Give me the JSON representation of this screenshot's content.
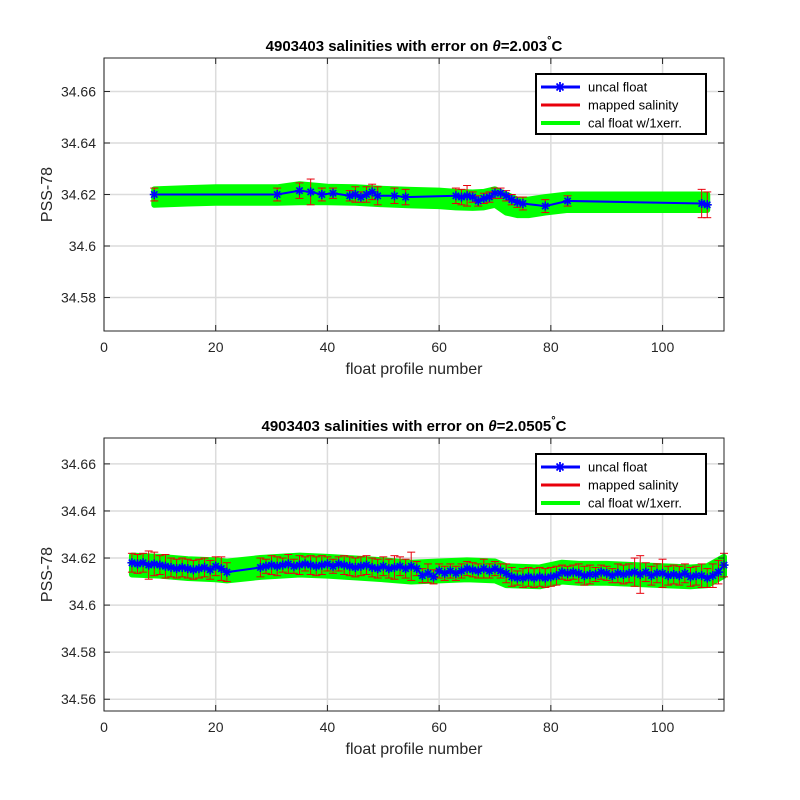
{
  "chart_data": [
    {
      "type": "line",
      "title_prefix": "4903403 salinities with error on ",
      "title_symbol": "θ",
      "title_value": "=2.003",
      "title_degree": "°",
      "title_unit": "C",
      "xlabel": "float profile number",
      "ylabel": "PSS-78",
      "xlim": [
        0,
        111
      ],
      "ylim": [
        34.567,
        34.673
      ],
      "xticks": [
        0,
        20,
        40,
        60,
        80,
        100
      ],
      "yticks": [
        34.58,
        34.6,
        34.62,
        34.64,
        34.66
      ],
      "ytick_labels": [
        "34.58",
        "34.6",
        "34.62",
        "34.64",
        "34.66"
      ],
      "grid": true,
      "legend_position": "top-right",
      "legend": [
        "uncal float",
        "mapped salinity",
        "cal float w/1xerr."
      ],
      "colors": {
        "uncal": "#0000ff",
        "mapped": "#e8000b",
        "cal": "#00ff00"
      },
      "band_x": [
        9,
        15,
        20,
        25,
        31,
        35,
        40,
        45,
        50,
        55,
        60,
        63,
        66,
        68,
        70,
        72,
        74,
        76,
        79,
        83,
        90,
        100,
        107,
        108
      ],
      "band_center": [
        34.619,
        34.6195,
        34.6198,
        34.6198,
        34.6198,
        34.6205,
        34.62,
        34.6198,
        34.6192,
        34.6188,
        34.6185,
        34.618,
        34.6178,
        34.618,
        34.619,
        34.6165,
        34.615,
        34.615,
        34.616,
        34.617,
        34.617,
        34.617,
        34.617,
        34.617
      ],
      "band_half": [
        0.003,
        0.003,
        0.003,
        0.003,
        0.003,
        0.0035,
        0.003,
        0.003,
        0.003,
        0.003,
        0.003,
        0.003,
        0.003,
        0.003,
        0.003,
        0.0035,
        0.003,
        0.003,
        0.003,
        0.003,
        0.003,
        0.003,
        0.003,
        0.003
      ],
      "points": {
        "x": [
          9,
          31,
          35,
          37,
          39,
          41,
          44,
          45,
          46,
          47,
          48,
          49,
          52,
          54,
          63,
          64,
          65,
          66,
          67,
          68,
          69,
          70,
          71,
          72,
          73,
          74,
          75,
          79,
          83,
          107,
          108
        ],
        "y": [
          34.62,
          34.62,
          34.6215,
          34.621,
          34.62,
          34.6205,
          34.6195,
          34.62,
          34.619,
          34.62,
          34.621,
          34.6195,
          34.6195,
          34.619,
          34.6195,
          34.619,
          34.6195,
          34.619,
          34.6175,
          34.6185,
          34.619,
          34.6205,
          34.6205,
          34.6195,
          34.618,
          34.617,
          34.6165,
          34.6155,
          34.6175,
          34.6165,
          34.616
        ],
        "err": [
          0.0025,
          0.0025,
          0.003,
          0.005,
          0.0025,
          0.002,
          0.002,
          0.003,
          0.002,
          0.003,
          0.003,
          0.0035,
          0.003,
          0.003,
          0.003,
          0.003,
          0.004,
          0.002,
          0.002,
          0.002,
          0.002,
          0.002,
          0.002,
          0.002,
          0.002,
          0.002,
          0.0025,
          0.0025,
          0.002,
          0.0055,
          0.005
        ]
      }
    },
    {
      "type": "line",
      "title_prefix": "4903403 salinities with error on ",
      "title_symbol": "θ",
      "title_value": "=2.0505",
      "title_degree": "°",
      "title_unit": "C",
      "xlabel": "float profile number",
      "ylabel": "PSS-78",
      "xlim": [
        0,
        111
      ],
      "ylim": [
        34.555,
        34.671
      ],
      "xticks": [
        0,
        20,
        40,
        60,
        80,
        100
      ],
      "yticks": [
        34.56,
        34.58,
        34.6,
        34.62,
        34.64,
        34.66
      ],
      "ytick_labels": [
        "34.56",
        "34.58",
        "34.6",
        "34.62",
        "34.64",
        "34.66"
      ],
      "grid": true,
      "legend_position": "top-right",
      "legend": [
        "uncal float",
        "mapped salinity",
        "cal float w/1xerr."
      ],
      "colors": {
        "uncal": "#0000ff",
        "mapped": "#e8000b",
        "cal": "#00ff00"
      },
      "band_x": [
        5,
        10,
        15,
        20,
        22,
        28,
        35,
        40,
        45,
        50,
        55,
        60,
        65,
        70,
        72,
        78,
        82,
        85,
        90,
        95,
        100,
        105,
        108,
        111
      ],
      "band_center": [
        34.617,
        34.6165,
        34.6155,
        34.615,
        34.6145,
        34.616,
        34.617,
        34.6165,
        34.6158,
        34.615,
        34.614,
        34.6145,
        34.615,
        34.6145,
        34.6125,
        34.612,
        34.614,
        34.6135,
        34.6135,
        34.613,
        34.6125,
        34.612,
        34.6125,
        34.6165
      ],
      "band_half": [
        0.004,
        0.004,
        0.004,
        0.004,
        0.004,
        0.004,
        0.004,
        0.004,
        0.004,
        0.004,
        0.004,
        0.004,
        0.004,
        0.004,
        0.004,
        0.004,
        0.004,
        0.004,
        0.004,
        0.004,
        0.004,
        0.004,
        0.004,
        0.004
      ],
      "points": {
        "x": [
          5,
          6,
          7,
          8,
          9,
          10,
          11,
          12,
          13,
          14,
          15,
          16,
          17,
          18,
          19,
          20,
          21,
          22,
          28,
          29,
          30,
          31,
          32,
          33,
          34,
          35,
          36,
          37,
          38,
          39,
          40,
          41,
          42,
          43,
          44,
          45,
          46,
          47,
          48,
          49,
          50,
          51,
          52,
          53,
          54,
          55,
          56,
          57,
          58,
          59,
          60,
          61,
          62,
          63,
          64,
          65,
          66,
          67,
          68,
          69,
          70,
          71,
          72,
          73,
          74,
          75,
          76,
          77,
          78,
          79,
          80,
          81,
          82,
          83,
          84,
          85,
          86,
          87,
          88,
          89,
          90,
          91,
          92,
          93,
          94,
          95,
          96,
          97,
          98,
          99,
          100,
          101,
          102,
          103,
          104,
          105,
          106,
          107,
          108,
          109,
          110,
          111
        ],
        "y": [
          34.618,
          34.6175,
          34.618,
          34.617,
          34.6175,
          34.617,
          34.6165,
          34.616,
          34.6155,
          34.616,
          34.6155,
          34.615,
          34.6155,
          34.616,
          34.615,
          34.6165,
          34.6155,
          34.614,
          34.616,
          34.6165,
          34.617,
          34.6165,
          34.617,
          34.6175,
          34.6165,
          34.617,
          34.6175,
          34.617,
          34.6165,
          34.617,
          34.6175,
          34.6165,
          34.6175,
          34.617,
          34.6165,
          34.616,
          34.6165,
          34.617,
          34.616,
          34.6155,
          34.6165,
          34.6155,
          34.616,
          34.6165,
          34.6155,
          34.6165,
          34.6155,
          34.6125,
          34.6135,
          34.612,
          34.6145,
          34.6135,
          34.6145,
          34.6135,
          34.6145,
          34.6155,
          34.615,
          34.6145,
          34.6155,
          34.6145,
          34.6155,
          34.6145,
          34.6135,
          34.612,
          34.6115,
          34.6115,
          34.612,
          34.6115,
          34.612,
          34.6115,
          34.612,
          34.6125,
          34.614,
          34.6135,
          34.614,
          34.6135,
          34.6125,
          34.613,
          34.613,
          34.614,
          34.6135,
          34.6125,
          34.6135,
          34.613,
          34.6135,
          34.614,
          34.613,
          34.614,
          34.6125,
          34.6135,
          34.6135,
          34.6125,
          34.613,
          34.6125,
          34.6135,
          34.612,
          34.6125,
          34.6125,
          34.6115,
          34.6125,
          34.614,
          34.617
        ],
        "err": [
          0.004,
          0.004,
          0.004,
          0.006,
          0.005,
          0.004,
          0.005,
          0.004,
          0.004,
          0.004,
          0.004,
          0.004,
          0.004,
          0.004,
          0.004,
          0.004,
          0.005,
          0.004,
          0.004,
          0.003,
          0.004,
          0.004,
          0.003,
          0.004,
          0.003,
          0.004,
          0.003,
          0.004,
          0.004,
          0.004,
          0.003,
          0.003,
          0.003,
          0.004,
          0.004,
          0.004,
          0.004,
          0.004,
          0.004,
          0.004,
          0.004,
          0.004,
          0.005,
          0.004,
          0.004,
          0.006,
          0.003,
          0.003,
          0.004,
          0.003,
          0.003,
          0.003,
          0.003,
          0.003,
          0.003,
          0.003,
          0.003,
          0.003,
          0.004,
          0.003,
          0.003,
          0.003,
          0.004,
          0.004,
          0.003,
          0.004,
          0.004,
          0.004,
          0.004,
          0.004,
          0.004,
          0.004,
          0.003,
          0.003,
          0.003,
          0.004,
          0.004,
          0.004,
          0.003,
          0.003,
          0.003,
          0.003,
          0.004,
          0.004,
          0.004,
          0.006,
          0.008,
          0.004,
          0.004,
          0.004,
          0.006,
          0.004,
          0.004,
          0.004,
          0.004,
          0.004,
          0.004,
          0.005,
          0.004,
          0.005,
          0.005,
          0.005
        ]
      }
    }
  ]
}
